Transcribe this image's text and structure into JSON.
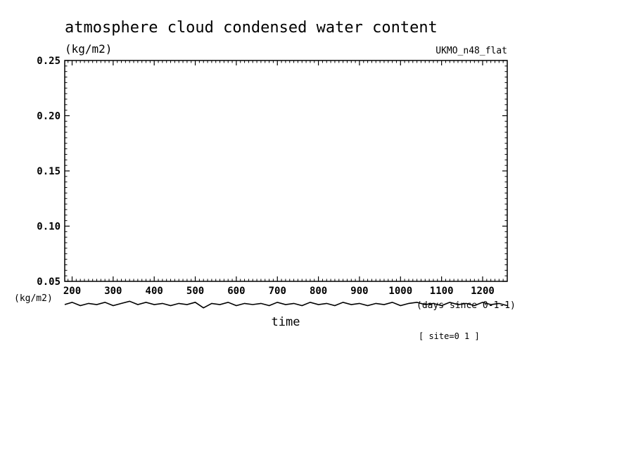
{
  "chart_data": {
    "type": "line",
    "title": "atmosphere cloud condensed water content",
    "ylabel": "(kg/m2)",
    "ylabel_lower": "(kg/m2)",
    "model_label": "UKMO_n48_flat",
    "xlabel": "time",
    "xunits": "(days since 0-1-1)",
    "site_label": "[ site=0 1 ]",
    "xlim": [
      182,
      1260
    ],
    "ylim": [
      0.05,
      0.25
    ],
    "yticks": [
      "0.05",
      "0.10",
      "0.15",
      "0.20",
      "0.25"
    ],
    "xticks": [
      "200",
      "300",
      "400",
      "500",
      "600",
      "700",
      "800",
      "900",
      "1000",
      "1100",
      "1200"
    ],
    "grid": false,
    "series": [
      {
        "x": [
          182,
          200,
          220,
          240,
          260,
          280,
          300,
          320,
          340,
          360,
          380,
          400,
          420,
          440,
          460,
          480,
          500,
          520,
          540,
          560,
          580,
          600,
          620,
          640,
          660,
          680,
          700,
          720,
          740,
          760,
          780,
          800,
          820,
          840,
          860,
          880,
          900,
          920,
          940,
          960,
          980,
          1000,
          1020,
          1040,
          1060,
          1080,
          1100,
          1120,
          1140,
          1160,
          1180,
          1200,
          1220,
          1240,
          1260
        ],
        "values": [
          0.029,
          0.031,
          0.028,
          0.03,
          0.029,
          0.031,
          0.028,
          0.03,
          0.032,
          0.029,
          0.031,
          0.029,
          0.03,
          0.028,
          0.03,
          0.029,
          0.031,
          0.026,
          0.03,
          0.029,
          0.031,
          0.028,
          0.03,
          0.029,
          0.03,
          0.028,
          0.031,
          0.029,
          0.03,
          0.028,
          0.031,
          0.029,
          0.03,
          0.028,
          0.031,
          0.029,
          0.03,
          0.028,
          0.03,
          0.029,
          0.031,
          0.028,
          0.03,
          0.031,
          0.029,
          0.03,
          0.028,
          0.031,
          0.029,
          0.03,
          0.028,
          0.031,
          0.029,
          0.03,
          0.028
        ]
      }
    ]
  }
}
